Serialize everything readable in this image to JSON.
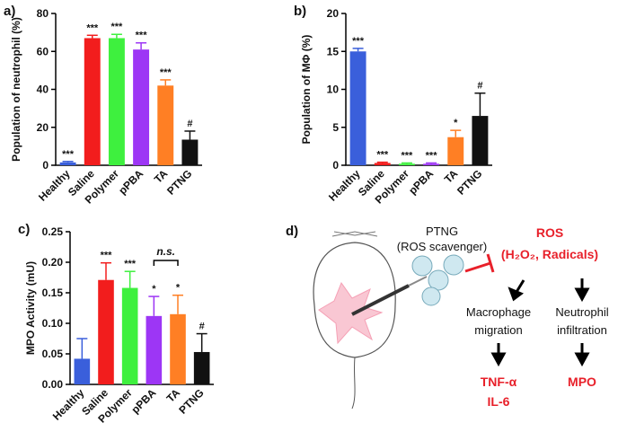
{
  "chart_data": [
    {
      "type": "bar",
      "panel_label": "a)",
      "ylabel": "Population of neutrophil (%)",
      "categories": [
        "Healthy",
        "Saline",
        "Polymer",
        "pPBA",
        "TA",
        "PTNG"
      ],
      "values": [
        1.5,
        67,
        67,
        61,
        42,
        13.5
      ],
      "errors": [
        0.5,
        1.5,
        2,
        3.5,
        3,
        4.5
      ],
      "annotations": [
        "***",
        "***",
        "***",
        "***",
        "***",
        "#"
      ],
      "colors": [
        "#3a5fdb",
        "#f21d1d",
        "#3ef03e",
        "#9d36f5",
        "#ff7f24",
        "#111111"
      ],
      "ylim": [
        0,
        80
      ],
      "yticks": [
        0,
        20,
        40,
        60,
        80
      ]
    },
    {
      "type": "bar",
      "panel_label": "b)",
      "ylabel": "Population of MΦ (%)",
      "categories": [
        "Healthy",
        "Saline",
        "Polymer",
        "pPBA",
        "TA",
        "PTNG"
      ],
      "values": [
        15,
        0.3,
        0.2,
        0.2,
        3.7,
        6.5
      ],
      "errors": [
        0.4,
        0.1,
        0.1,
        0.1,
        0.9,
        3
      ],
      "annotations": [
        "***",
        "***",
        "***",
        "***",
        "*",
        "#"
      ],
      "colors": [
        "#3a5fdb",
        "#f21d1d",
        "#3ef03e",
        "#9d36f5",
        "#ff7f24",
        "#111111"
      ],
      "ylim": [
        0,
        20
      ],
      "yticks": [
        0,
        5,
        10,
        15,
        20
      ]
    },
    {
      "type": "bar",
      "panel_label": "c)",
      "ylabel": "MPO Activity (mU)",
      "categories": [
        "Healthy",
        "Saline",
        "Polymer",
        "pPBA",
        "TA",
        "PTNG"
      ],
      "values": [
        0.042,
        0.171,
        0.158,
        0.112,
        0.115,
        0.053
      ],
      "errors": [
        0.033,
        0.028,
        0.027,
        0.032,
        0.031,
        0.03
      ],
      "annotations": [
        null,
        "***",
        "***",
        "*",
        "*",
        "#"
      ],
      "colors": [
        "#3a5fdb",
        "#f21d1d",
        "#3ef03e",
        "#9d36f5",
        "#ff7f24",
        "#111111"
      ],
      "bracket_label": "n.s.",
      "ylim": [
        0,
        0.25
      ],
      "yticks": [
        {
          "value": 0,
          "label": "0.00"
        },
        {
          "value": 0.05,
          "label": "0.05"
        },
        {
          "value": 0.1,
          "label": "0.10"
        },
        {
          "value": 0.15,
          "label": "0.15"
        },
        {
          "value": 0.2,
          "label": "0.20"
        },
        {
          "value": 0.25,
          "label": "0.25"
        }
      ]
    }
  ],
  "diagram": {
    "panel_label": "d)",
    "agent": "PTNG",
    "agent_note": "(ROS scavenger)",
    "ros": "ROS",
    "ros_note": "(H₂O₂, Radicals)",
    "left_step": [
      "Macrophage",
      "migration"
    ],
    "right_step": [
      "Neutrophil",
      "infiltration"
    ],
    "left_out": [
      "TNF-α",
      "IL-6"
    ],
    "right_out": "MPO"
  }
}
